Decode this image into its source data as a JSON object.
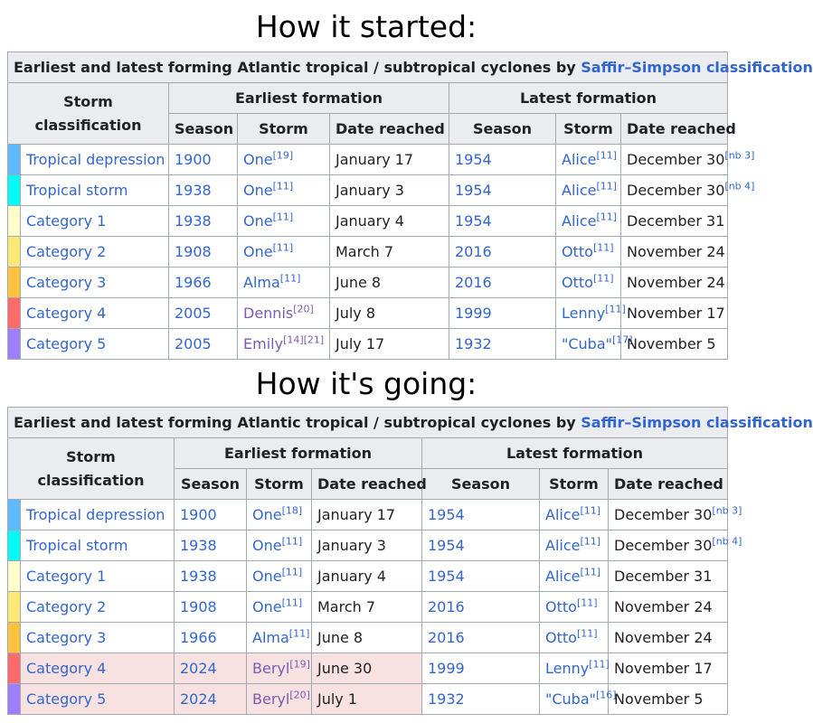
{
  "headings": {
    "top": "How it started:",
    "bottom": "How it's going:"
  },
  "table_caption": {
    "prefix": "Earliest and latest forming Atlantic tropical / subtropical cyclones by",
    "link": "Saffir–Simpson classification"
  },
  "columns": {
    "classification": "Storm classification",
    "earliest": "Earliest formation",
    "latest": "Latest formation",
    "season": "Season",
    "storm": "Storm",
    "date": "Date reached"
  },
  "colors": {
    "td": "#5ebaff",
    "ts": "#00faf4",
    "c1": "#ffffcc",
    "c2": "#ffe775",
    "c3": "#ffc140",
    "c4": "#ff8f20",
    "c5": "#ff6060"
  },
  "swatch_colors": [
    "#5ebaff",
    "#00faf4",
    "#ffffcc",
    "#ffe775",
    "#ffc140",
    "#ff6b6b",
    "#9f7fff"
  ],
  "before": {
    "rows": [
      {
        "cls": "Tropical depression",
        "e_season": "1900",
        "e_storm": "One",
        "e_ref": "[19]",
        "e_date": "January 17",
        "l_season": "1954",
        "l_storm": "Alice",
        "l_ref": "[11]",
        "l_date": "December 30",
        "l_note": "[nb 3]"
      },
      {
        "cls": "Tropical storm",
        "e_season": "1938",
        "e_storm": "One",
        "e_ref": "[11]",
        "e_date": "January 3",
        "l_season": "1954",
        "l_storm": "Alice",
        "l_ref": "[11]",
        "l_date": "December 30",
        "l_note": "[nb 4]"
      },
      {
        "cls": "Category 1",
        "e_season": "1938",
        "e_storm": "One",
        "e_ref": "[11]",
        "e_date": "January 4",
        "l_season": "1954",
        "l_storm": "Alice",
        "l_ref": "[11]",
        "l_date": "December 31",
        "l_note": ""
      },
      {
        "cls": "Category 2",
        "e_season": "1908",
        "e_storm": "One",
        "e_ref": "[11]",
        "e_date": "March 7",
        "l_season": "2016",
        "l_storm": "Otto",
        "l_ref": "[11]",
        "l_date": "November 24",
        "l_note": ""
      },
      {
        "cls": "Category 3",
        "e_season": "1966",
        "e_storm": "Alma",
        "e_ref": "[11]",
        "e_date": "June 8",
        "l_season": "2016",
        "l_storm": "Otto",
        "l_ref": "[11]",
        "l_date": "November 24",
        "l_note": ""
      },
      {
        "cls": "Category 4",
        "e_season": "2005",
        "e_storm": "Dennis",
        "e_ref": "[20]",
        "e_date": "July 8",
        "l_season": "1999",
        "l_storm": "Lenny",
        "l_ref": "[11]",
        "l_date": "November 17",
        "l_note": ""
      },
      {
        "cls": "Category 5",
        "e_season": "2005",
        "e_storm": "Emily",
        "e_ref": "[14][21]",
        "e_date": "July 17",
        "l_season": "1932",
        "l_storm": "\"Cuba\"",
        "l_ref": "[17]",
        "l_date": "November 5",
        "l_note": ""
      }
    ]
  },
  "after": {
    "rows": [
      {
        "cls": "Tropical depression",
        "e_season": "1900",
        "e_storm": "One",
        "e_ref": "[18]",
        "e_date": "January 17",
        "l_season": "1954",
        "l_storm": "Alice",
        "l_ref": "[11]",
        "l_date": "December 30",
        "l_note": "[nb 3]"
      },
      {
        "cls": "Tropical storm",
        "e_season": "1938",
        "e_storm": "One",
        "e_ref": "[11]",
        "e_date": "January 3",
        "l_season": "1954",
        "l_storm": "Alice",
        "l_ref": "[11]",
        "l_date": "December 30",
        "l_note": "[nb 4]"
      },
      {
        "cls": "Category 1",
        "e_season": "1938",
        "e_storm": "One",
        "e_ref": "[11]",
        "e_date": "January 4",
        "l_season": "1954",
        "l_storm": "Alice",
        "l_ref": "[11]",
        "l_date": "December 31",
        "l_note": ""
      },
      {
        "cls": "Category 2",
        "e_season": "1908",
        "e_storm": "One",
        "e_ref": "[11]",
        "e_date": "March 7",
        "l_season": "2016",
        "l_storm": "Otto",
        "l_ref": "[11]",
        "l_date": "November 24",
        "l_note": ""
      },
      {
        "cls": "Category 3",
        "e_season": "1966",
        "e_storm": "Alma",
        "e_ref": "[11]",
        "e_date": "June 8",
        "l_season": "2016",
        "l_storm": "Otto",
        "l_ref": "[11]",
        "l_date": "November 24",
        "l_note": ""
      },
      {
        "cls": "Category 4",
        "e_season": "2024",
        "e_storm": "Beryl",
        "e_ref": "[19]",
        "e_date": "June 30",
        "l_season": "1999",
        "l_storm": "Lenny",
        "l_ref": "[11]",
        "l_date": "November 17",
        "l_note": ""
      },
      {
        "cls": "Category 5",
        "e_season": "2024",
        "e_storm": "Beryl",
        "e_ref": "[20]",
        "e_date": "July 1",
        "l_season": "1932",
        "l_storm": "\"Cuba\"",
        "l_ref": "[16]",
        "l_date": "November 5",
        "l_note": ""
      }
    ]
  }
}
